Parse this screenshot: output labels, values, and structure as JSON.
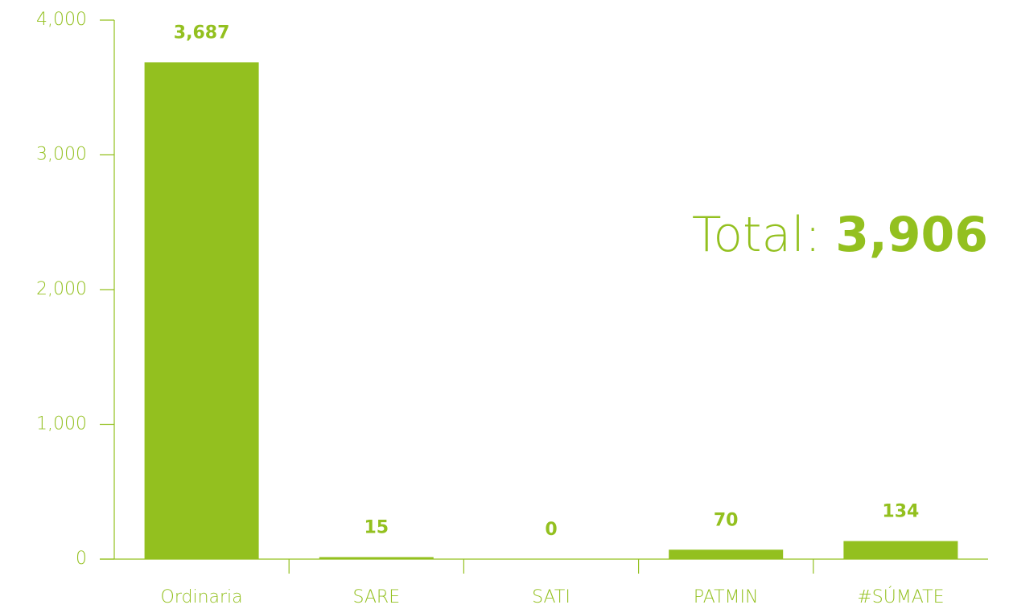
{
  "chart_data": {
    "type": "bar",
    "categories": [
      "Ordinaria",
      "SARE",
      "SATI",
      "PATMIN",
      "#SÚMATE"
    ],
    "values": [
      3687,
      15,
      0,
      70,
      134
    ],
    "value_labels": [
      "3,687",
      "15",
      "0",
      "70",
      "134"
    ],
    "color": "#93c01f",
    "ylim": [
      0,
      4000
    ],
    "yticks": [
      0,
      {
        "value": 1000,
        "label": "1,000"
      },
      {
        "value": 2000,
        "label": "2,000"
      },
      {
        "value": 3000,
        "label": "3,000"
      },
      {
        "value": 4000,
        "label": "4,000"
      }
    ],
    "grid": false,
    "total_label": "Total:",
    "total_value": "3,906"
  }
}
